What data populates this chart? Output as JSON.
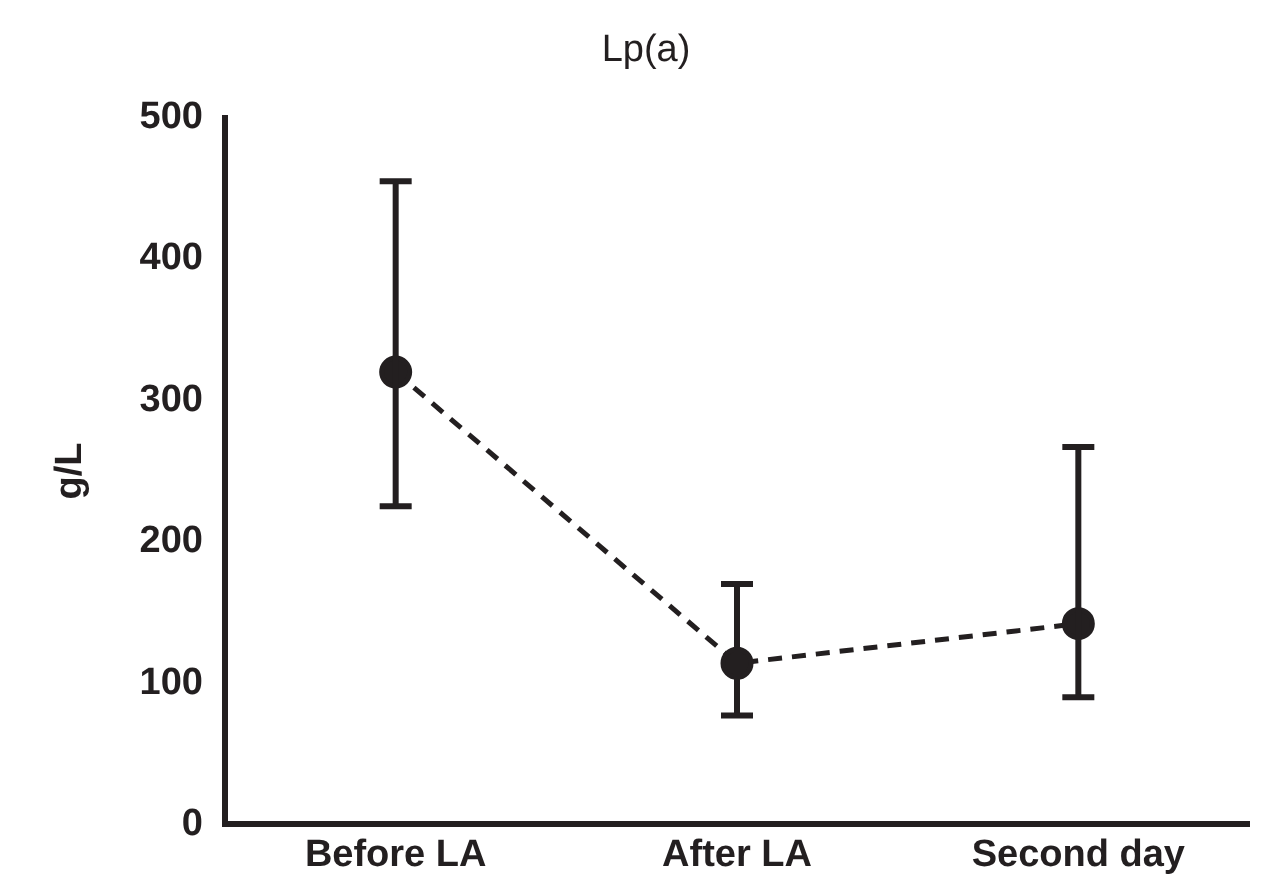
{
  "chart_data": {
    "type": "line",
    "title": "Lp(a)",
    "ylabel": "g/L",
    "categories": [
      "Before LA",
      "After LA",
      "Second day"
    ],
    "series": [
      {
        "color": "#231f20",
        "values": [
          320,
          114,
          142
        ],
        "errors": [
          [
            225,
            455
          ],
          [
            77,
            170
          ],
          [
            90,
            267
          ]
        ]
      }
    ],
    "ylim": [
      0,
      500
    ],
    "yticks": [
      0,
      100,
      200,
      300,
      400,
      500
    ],
    "grid": false,
    "legend": false,
    "marker": "circle",
    "line_style": "dashed"
  }
}
